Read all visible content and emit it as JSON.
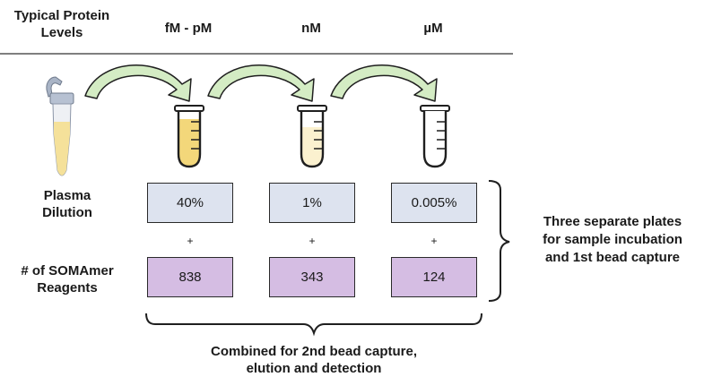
{
  "header": {
    "row_label_line1": "Typical Protein",
    "row_label_line2": "Levels",
    "columns": [
      "fM - pM",
      "nM",
      "µM"
    ]
  },
  "rows": {
    "dilution_label_line1": "Plasma",
    "dilution_label_line2": "Dilution",
    "reagents_label_line1": "# of SOMAmer",
    "reagents_label_line2": "Reagents"
  },
  "dilutions": [
    "40%",
    "1%",
    "0.005%"
  ],
  "reagents": [
    "838",
    "343",
    "124"
  ],
  "plus_sign": "+",
  "right_note": {
    "line1": "Three separate plates",
    "line2": "for sample incubation",
    "line3": "and 1st bead capture"
  },
  "bottom_note": {
    "line1": "Combined for 2nd bead capture,",
    "line2": "elution and detection"
  },
  "colors": {
    "arrow_fill": "#d4ecc4",
    "tube_fill_high": "#f3d77a",
    "tube_fill_mid": "#fbf1cf",
    "dilution_box": "#dde3ef",
    "reagent_box": "#d5bde3"
  },
  "icons": [
    "sample-tube-icon",
    "curved-arrow-icon",
    "test-tube-icon",
    "brace-icon"
  ]
}
